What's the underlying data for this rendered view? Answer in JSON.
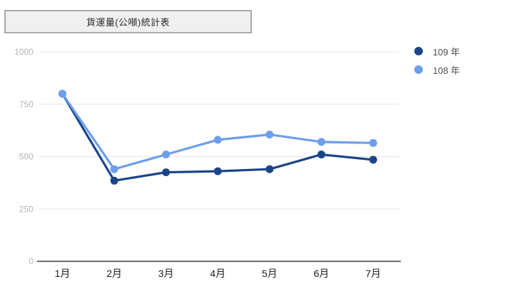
{
  "title_box": {
    "label": "貨運量(公噸)統計表"
  },
  "legend": {
    "items": [
      {
        "label": "109 年",
        "color": "#1c4587"
      },
      {
        "label": "108 年",
        "color": "#6d9eeb"
      }
    ]
  },
  "chart_data": {
    "type": "line",
    "title": "貨運量(公噸)統計表",
    "categories": [
      "1月",
      "2月",
      "3月",
      "4月",
      "5月",
      "6月",
      "7月"
    ],
    "series": [
      {
        "name": "109 年",
        "color": "#1c4587",
        "values": [
          800,
          385,
          425,
          430,
          440,
          510,
          485
        ]
      },
      {
        "name": "108 年",
        "color": "#6d9eeb",
        "values": [
          800,
          440,
          510,
          580,
          605,
          570,
          565
        ]
      }
    ],
    "xlabel": "",
    "ylabel": "",
    "ylim": [
      0,
      1000
    ],
    "yticks": [
      0,
      250,
      500,
      750,
      1000
    ],
    "grid": true,
    "legend_position": "top-right"
  },
  "axes": {
    "grid_color": "#e4e4e4",
    "baseline_color": "#6e6e6e",
    "ytick_color": "#b5b5b5",
    "xtick_color": "#1c1c1c"
  }
}
